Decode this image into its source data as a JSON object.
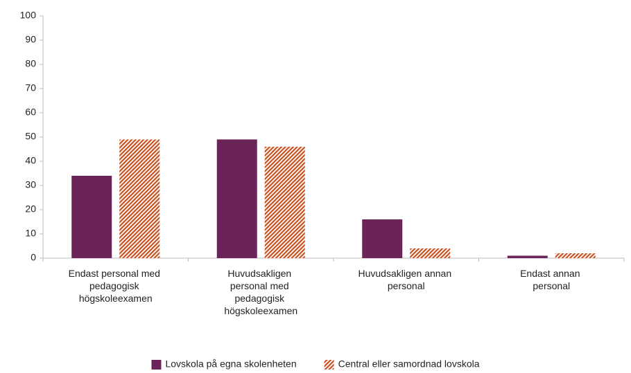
{
  "chart_data": {
    "type": "bar",
    "categories": [
      "Endast personal med pedagogisk högskoleexamen",
      "Huvudsakligen personal med pedagogisk högskoleexamen",
      "Huvudsakligen annan personal",
      "Endast annan personal"
    ],
    "series": [
      {
        "name": "Lovskola på egna skolenheten",
        "color": "#6b2457",
        "values": [
          34,
          49,
          16,
          1
        ]
      },
      {
        "name": "Central eller samordnad lovskola",
        "color": "#c8501e",
        "pattern": "hatch",
        "values": [
          49,
          46,
          4,
          2
        ]
      }
    ],
    "ylim": [
      0,
      100
    ],
    "yticks": [
      0,
      10,
      20,
      30,
      40,
      50,
      60,
      70,
      80,
      90,
      100
    ],
    "grid": false,
    "legend": "bottom"
  }
}
